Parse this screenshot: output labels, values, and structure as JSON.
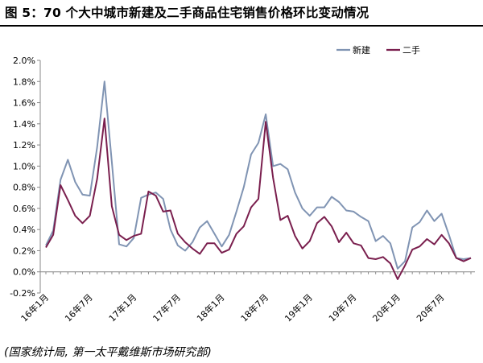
{
  "figure": {
    "title": "图 5：70 个大中城市新建及二手商品住宅销售价格环比变动情况",
    "source": "(国家统计局, 第一太平戴维斯市场研究部)"
  },
  "chart_data": {
    "type": "line",
    "ylim": [
      -0.2,
      2.0
    ],
    "y_ticks": [
      "2.0%",
      "1.8%",
      "1.6%",
      "1.4%",
      "1.2%",
      "1.0%",
      "0.8%",
      "0.6%",
      "0.4%",
      "0.2%",
      "0.0%",
      "-0.2%"
    ],
    "x_labels": [
      "16年1月",
      "16年7月",
      "17年1月",
      "17年7月",
      "18年1月",
      "18年7月",
      "19年1月",
      "19年7月",
      "20年1月",
      "20年7月"
    ],
    "x": [
      "2016-01",
      "2016-02",
      "2016-03",
      "2016-04",
      "2016-05",
      "2016-06",
      "2016-07",
      "2016-08",
      "2016-09",
      "2016-10",
      "2016-11",
      "2016-12",
      "2017-01",
      "2017-02",
      "2017-03",
      "2017-04",
      "2017-05",
      "2017-06",
      "2017-07",
      "2017-08",
      "2017-09",
      "2017-10",
      "2017-11",
      "2017-12",
      "2018-01",
      "2018-02",
      "2018-03",
      "2018-04",
      "2018-05",
      "2018-06",
      "2018-07",
      "2018-08",
      "2018-09",
      "2018-10",
      "2018-11",
      "2018-12",
      "2019-01",
      "2019-02",
      "2019-03",
      "2019-04",
      "2019-05",
      "2019-06",
      "2019-07",
      "2019-08",
      "2019-09",
      "2019-10",
      "2019-11",
      "2019-12",
      "2020-01",
      "2020-02",
      "2020-03",
      "2020-04",
      "2020-05",
      "2020-06",
      "2020-07",
      "2020-08",
      "2020-09",
      "2020-10",
      "2020-11"
    ],
    "grid": false,
    "legend": "top-right",
    "series": [
      {
        "name": "新建",
        "color": "#8094b3",
        "values": [
          0.25,
          0.39,
          0.87,
          1.06,
          0.85,
          0.73,
          0.72,
          1.18,
          1.8,
          1.04,
          0.26,
          0.24,
          0.32,
          0.7,
          0.73,
          0.75,
          0.69,
          0.4,
          0.25,
          0.2,
          0.28,
          0.42,
          0.48,
          0.36,
          0.24,
          0.35,
          0.57,
          0.8,
          1.11,
          1.22,
          1.49,
          1.0,
          1.02,
          0.97,
          0.75,
          0.6,
          0.53,
          0.61,
          0.61,
          0.71,
          0.66,
          0.58,
          0.57,
          0.52,
          0.48,
          0.29,
          0.34,
          0.27,
          0.03,
          0.1,
          0.42,
          0.47,
          0.58,
          0.48,
          0.55,
          0.35,
          0.13,
          0.12,
          0.13
        ]
      },
      {
        "name": "二手",
        "color": "#7a1f4e",
        "values": [
          0.23,
          0.35,
          0.82,
          0.68,
          0.53,
          0.46,
          0.53,
          0.88,
          1.45,
          0.62,
          0.35,
          0.3,
          0.34,
          0.36,
          0.76,
          0.72,
          0.57,
          0.58,
          0.36,
          0.28,
          0.22,
          0.17,
          0.27,
          0.27,
          0.18,
          0.21,
          0.36,
          0.43,
          0.61,
          0.69,
          1.42,
          0.89,
          0.49,
          0.53,
          0.34,
          0.22,
          0.29,
          0.46,
          0.52,
          0.43,
          0.28,
          0.37,
          0.27,
          0.25,
          0.13,
          0.12,
          0.14,
          0.08,
          -0.07,
          0.06,
          0.21,
          0.24,
          0.31,
          0.26,
          0.35,
          0.27,
          0.13,
          0.1,
          0.13
        ]
      }
    ]
  }
}
